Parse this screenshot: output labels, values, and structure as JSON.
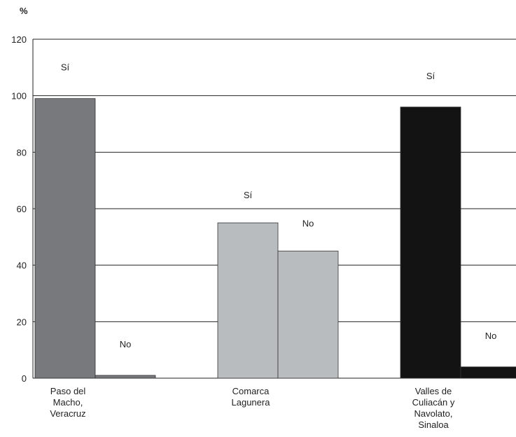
{
  "chart_data": {
    "type": "bar",
    "ylabel": "%",
    "ylim": [
      0,
      120
    ],
    "yticks": [
      0,
      20,
      40,
      60,
      80,
      100,
      120
    ],
    "grid": true,
    "categories": [
      {
        "label": [
          "Paso del",
          "Macho,",
          "Veracruz"
        ],
        "color": "#77797c",
        "bars": [
          {
            "label": "Sí",
            "value": 99
          },
          {
            "label": "No",
            "value": 1
          }
        ]
      },
      {
        "label": [
          "Comarca",
          "Lagunera"
        ],
        "color": "#b9bcbf",
        "bars": [
          {
            "label": "Sí",
            "value": 55
          },
          {
            "label": "No",
            "value": 45
          }
        ]
      },
      {
        "label": [
          "Valles de",
          "Culiacán y",
          "Navolato,",
          "Sinaloa"
        ],
        "color": "#131313",
        "bars": [
          {
            "label": "Sí",
            "value": 96
          },
          {
            "label": "No",
            "value": 4
          }
        ]
      }
    ]
  }
}
